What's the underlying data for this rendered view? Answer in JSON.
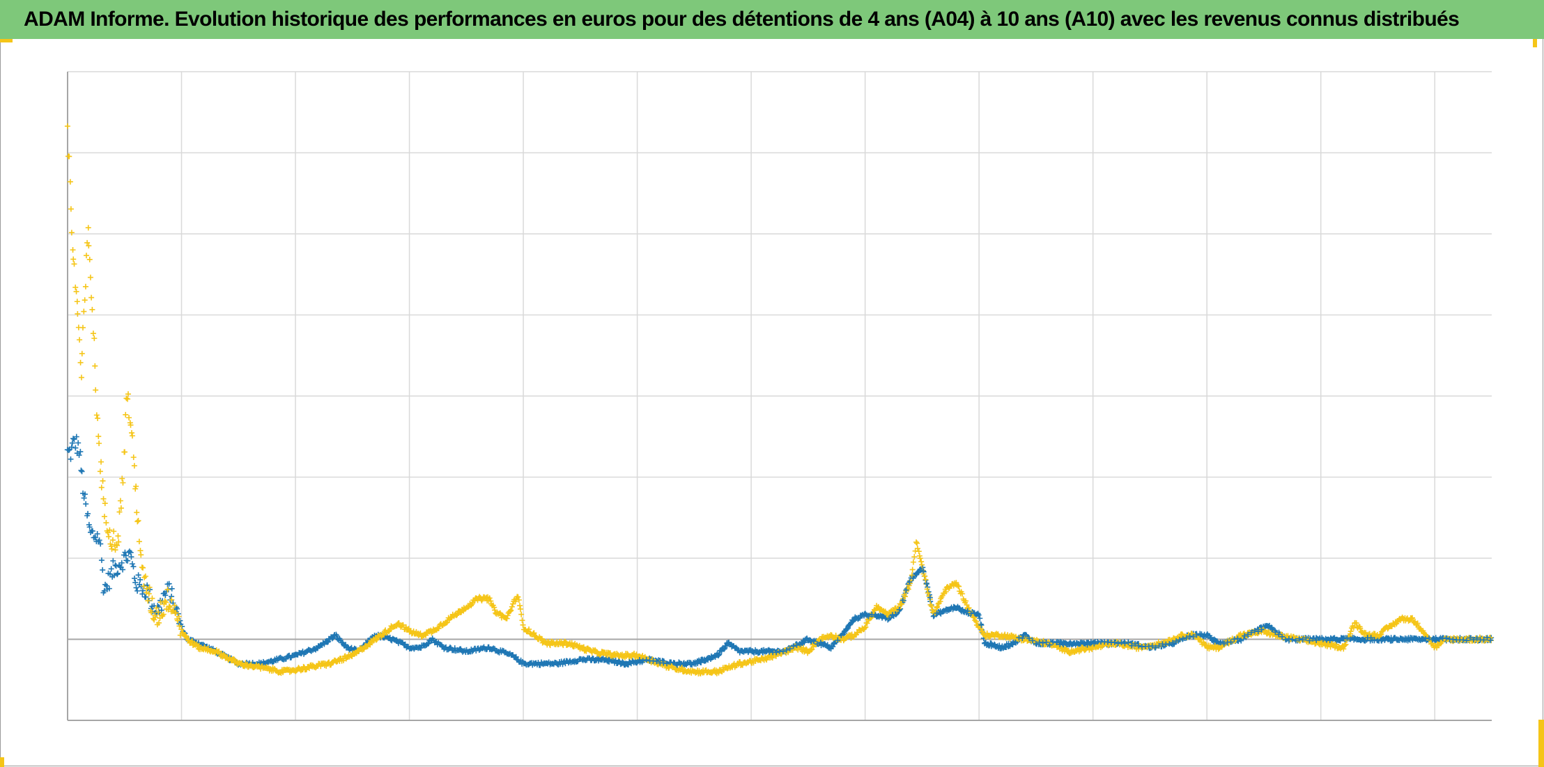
{
  "title": "ADAM Informe. Evolution historique des performances en euros pour des détentions de 4 ans (A04) à 10 ans (A10) avec les revenus connus distribués",
  "colors": {
    "header_bg": "#7ec87a",
    "series_a": "#1f77b4",
    "series_b": "#f5c518",
    "grid": "#d9d9d9",
    "zero_line": "#a6a6a6",
    "accent": "#f5c518"
  },
  "chart_data": {
    "type": "scatter",
    "title": "ADAM Informe. Evolution historique des performances en euros pour des détentions de 4 ans (A04) à 10 ans (A10) avec les revenus connus distribués",
    "xlabel": "",
    "ylabel": "",
    "marker": "+",
    "grid": true,
    "legend": "none",
    "xlim": [
      0,
      12.5
    ],
    "ylim": [
      -1,
      7
    ],
    "x_gridlines": 12,
    "y_gridlines": 8,
    "series": [
      {
        "color": "#1f77b4",
        "anchors": [
          [
            0,
            2.3
          ],
          [
            0.03,
            2.3
          ],
          [
            0.06,
            2.45
          ],
          [
            0.1,
            2.35
          ],
          [
            0.15,
            1.7
          ],
          [
            0.2,
            1.3
          ],
          [
            0.28,
            1.25
          ],
          [
            0.32,
            0.6
          ],
          [
            0.4,
            0.85
          ],
          [
            0.5,
            1.0
          ],
          [
            0.55,
            1.05
          ],
          [
            0.6,
            0.7
          ],
          [
            0.7,
            0.6
          ],
          [
            0.75,
            0.4
          ],
          [
            0.8,
            0.35
          ],
          [
            0.85,
            0.55
          ],
          [
            0.9,
            0.6
          ],
          [
            0.95,
            0.35
          ],
          [
            1.0,
            0.15
          ],
          [
            1.05,
            0.0
          ],
          [
            1.15,
            -0.05
          ],
          [
            1.3,
            -0.15
          ],
          [
            1.5,
            -0.3
          ],
          [
            1.7,
            -0.3
          ],
          [
            1.85,
            -0.25
          ],
          [
            2.0,
            -0.2
          ],
          [
            2.1,
            -0.15
          ],
          [
            2.2,
            -0.1
          ],
          [
            2.35,
            0.05
          ],
          [
            2.45,
            -0.1
          ],
          [
            2.55,
            -0.15
          ],
          [
            2.7,
            0.05
          ],
          [
            2.85,
            0.0
          ],
          [
            3.0,
            -0.1
          ],
          [
            3.1,
            -0.1
          ],
          [
            3.2,
            0.0
          ],
          [
            3.3,
            -0.1
          ],
          [
            3.5,
            -0.15
          ],
          [
            3.7,
            -0.1
          ],
          [
            3.9,
            -0.2
          ],
          [
            4.0,
            -0.3
          ],
          [
            4.1,
            -0.3
          ],
          [
            4.3,
            -0.3
          ],
          [
            4.5,
            -0.25
          ],
          [
            4.7,
            -0.25
          ],
          [
            4.9,
            -0.3
          ],
          [
            5.1,
            -0.25
          ],
          [
            5.3,
            -0.3
          ],
          [
            5.5,
            -0.3
          ],
          [
            5.7,
            -0.2
          ],
          [
            5.8,
            -0.05
          ],
          [
            5.9,
            -0.15
          ],
          [
            6.1,
            -0.15
          ],
          [
            6.3,
            -0.15
          ],
          [
            6.5,
            0.0
          ],
          [
            6.6,
            -0.05
          ],
          [
            6.7,
            -0.1
          ],
          [
            6.8,
            0.05
          ],
          [
            6.9,
            0.25
          ],
          [
            7.0,
            0.3
          ],
          [
            7.1,
            0.3
          ],
          [
            7.2,
            0.25
          ],
          [
            7.3,
            0.35
          ],
          [
            7.4,
            0.75
          ],
          [
            7.45,
            0.8
          ],
          [
            7.5,
            0.9
          ],
          [
            7.55,
            0.65
          ],
          [
            7.6,
            0.3
          ],
          [
            7.7,
            0.35
          ],
          [
            7.8,
            0.4
          ],
          [
            7.85,
            0.35
          ],
          [
            8.0,
            0.3
          ],
          [
            8.05,
            -0.05
          ],
          [
            8.2,
            -0.1
          ],
          [
            8.3,
            -0.05
          ],
          [
            8.4,
            0.05
          ],
          [
            8.5,
            -0.05
          ],
          [
            8.7,
            -0.05
          ],
          [
            8.9,
            -0.05
          ],
          [
            9.1,
            -0.05
          ],
          [
            9.3,
            -0.05
          ],
          [
            9.5,
            -0.1
          ],
          [
            9.7,
            -0.05
          ],
          [
            9.85,
            0.05
          ],
          [
            10.0,
            0.05
          ],
          [
            10.1,
            -0.05
          ],
          [
            10.3,
            0.0
          ],
          [
            10.5,
            0.15
          ],
          [
            10.55,
            0.15
          ],
          [
            10.7,
            0.0
          ],
          [
            10.9,
            0.0
          ],
          [
            11.1,
            0.0
          ],
          [
            11.5,
            0.0
          ],
          [
            12.0,
            0.0
          ],
          [
            12.5,
            0.0
          ]
        ]
      },
      {
        "color": "#f5c518",
        "anchors": [
          [
            0,
            6.2
          ],
          [
            0.02,
            5.8
          ],
          [
            0.03,
            5.3
          ],
          [
            0.05,
            4.7
          ],
          [
            0.08,
            4.2
          ],
          [
            0.1,
            3.8
          ],
          [
            0.12,
            3.2
          ],
          [
            0.15,
            4.2
          ],
          [
            0.18,
            5.0
          ],
          [
            0.2,
            4.6
          ],
          [
            0.22,
            4.0
          ],
          [
            0.25,
            3.0
          ],
          [
            0.28,
            2.3
          ],
          [
            0.32,
            1.6
          ],
          [
            0.36,
            1.4
          ],
          [
            0.4,
            1.2
          ],
          [
            0.45,
            1.3
          ],
          [
            0.5,
            2.3
          ],
          [
            0.52,
            3.1
          ],
          [
            0.55,
            2.7
          ],
          [
            0.58,
            2.2
          ],
          [
            0.6,
            1.8
          ],
          [
            0.62,
            1.5
          ],
          [
            0.65,
            0.8
          ],
          [
            0.7,
            0.6
          ],
          [
            0.75,
            0.35
          ],
          [
            0.8,
            0.3
          ],
          [
            0.85,
            0.45
          ],
          [
            0.9,
            0.5
          ],
          [
            0.95,
            0.35
          ],
          [
            1.0,
            0.1
          ],
          [
            1.05,
            0.0
          ],
          [
            1.15,
            -0.1
          ],
          [
            1.3,
            -0.15
          ],
          [
            1.5,
            -0.3
          ],
          [
            1.7,
            -0.35
          ],
          [
            1.9,
            -0.4
          ],
          [
            2.1,
            -0.35
          ],
          [
            2.3,
            -0.3
          ],
          [
            2.5,
            -0.2
          ],
          [
            2.6,
            -0.1
          ],
          [
            2.7,
            0.0
          ],
          [
            2.8,
            0.1
          ],
          [
            2.9,
            0.2
          ],
          [
            2.95,
            0.15
          ],
          [
            3.0,
            0.1
          ],
          [
            3.1,
            0.05
          ],
          [
            3.2,
            0.1
          ],
          [
            3.3,
            0.2
          ],
          [
            3.4,
            0.3
          ],
          [
            3.5,
            0.4
          ],
          [
            3.6,
            0.5
          ],
          [
            3.7,
            0.5
          ],
          [
            3.75,
            0.35
          ],
          [
            3.8,
            0.3
          ],
          [
            3.85,
            0.25
          ],
          [
            3.9,
            0.4
          ],
          [
            3.95,
            0.55
          ],
          [
            4.0,
            0.15
          ],
          [
            4.1,
            0.05
          ],
          [
            4.2,
            -0.05
          ],
          [
            4.4,
            -0.05
          ],
          [
            4.6,
            -0.15
          ],
          [
            4.8,
            -0.2
          ],
          [
            5.0,
            -0.2
          ],
          [
            5.1,
            -0.25
          ],
          [
            5.3,
            -0.35
          ],
          [
            5.5,
            -0.4
          ],
          [
            5.7,
            -0.4
          ],
          [
            5.9,
            -0.3
          ],
          [
            6.1,
            -0.25
          ],
          [
            6.3,
            -0.15
          ],
          [
            6.4,
            -0.1
          ],
          [
            6.5,
            -0.15
          ],
          [
            6.6,
            0.0
          ],
          [
            6.7,
            0.05
          ],
          [
            6.8,
            0.0
          ],
          [
            6.9,
            0.05
          ],
          [
            7.0,
            0.15
          ],
          [
            7.1,
            0.4
          ],
          [
            7.2,
            0.3
          ],
          [
            7.3,
            0.4
          ],
          [
            7.4,
            0.7
          ],
          [
            7.45,
            1.2
          ],
          [
            7.5,
            0.9
          ],
          [
            7.55,
            0.6
          ],
          [
            7.6,
            0.3
          ],
          [
            7.7,
            0.6
          ],
          [
            7.8,
            0.7
          ],
          [
            7.85,
            0.55
          ],
          [
            7.9,
            0.4
          ],
          [
            8.0,
            0.15
          ],
          [
            8.05,
            0.05
          ],
          [
            8.2,
            0.05
          ],
          [
            8.4,
            0.0
          ],
          [
            8.6,
            -0.05
          ],
          [
            8.8,
            -0.15
          ],
          [
            9.0,
            -0.1
          ],
          [
            9.2,
            -0.05
          ],
          [
            9.4,
            -0.1
          ],
          [
            9.6,
            -0.05
          ],
          [
            9.8,
            0.05
          ],
          [
            9.9,
            0.05
          ],
          [
            10.0,
            -0.1
          ],
          [
            10.1,
            -0.1
          ],
          [
            10.3,
            0.05
          ],
          [
            10.5,
            0.1
          ],
          [
            10.6,
            0.05
          ],
          [
            10.8,
            0.0
          ],
          [
            11.0,
            -0.05
          ],
          [
            11.2,
            -0.1
          ],
          [
            11.3,
            0.2
          ],
          [
            11.4,
            0.05
          ],
          [
            11.5,
            0.05
          ],
          [
            11.6,
            0.15
          ],
          [
            11.7,
            0.25
          ],
          [
            11.8,
            0.25
          ],
          [
            11.9,
            0.1
          ],
          [
            12.0,
            -0.1
          ],
          [
            12.1,
            0.0
          ],
          [
            12.5,
            0.0
          ]
        ]
      }
    ]
  }
}
